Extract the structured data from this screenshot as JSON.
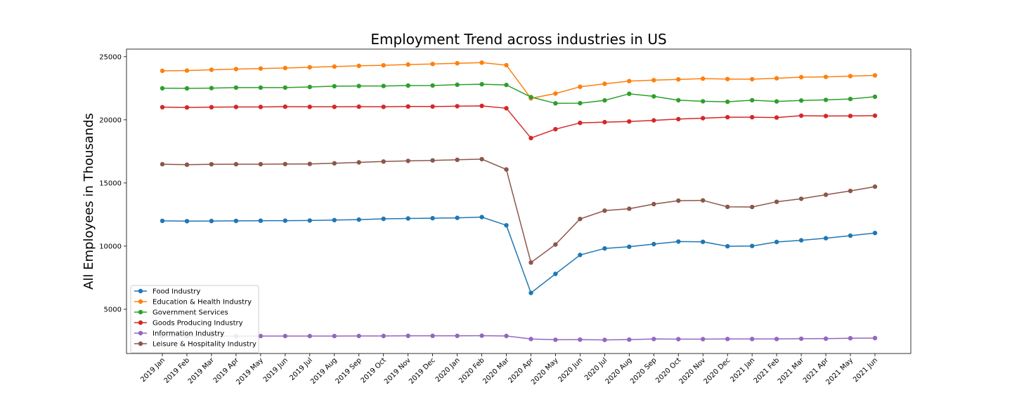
{
  "chart_data": {
    "type": "line",
    "title": "Employment Trend across industries in US",
    "xlabel": "",
    "ylabel": "All Employees in Thousands",
    "ylim": [
      1500,
      25600
    ],
    "yticks": [
      5000,
      10000,
      15000,
      20000,
      25000
    ],
    "grid": false,
    "legend_position": "lower-left",
    "categories": [
      "2019 Jan",
      "2019 Feb",
      "2019 Mar",
      "2019 Apr",
      "2019 May",
      "2019 Jun",
      "2019 Jul",
      "2019 Aug",
      "2019 Sep",
      "2019 Oct",
      "2019 Nov",
      "2019 Dec",
      "2020 Jan",
      "2020 Feb",
      "2020 Mar",
      "2020 Apr",
      "2020 May",
      "2020 Jun",
      "2020 Jul",
      "2020 Aug",
      "2020 Sep",
      "2020 Oct",
      "2020 Nov",
      "2020 Dec",
      "2021 Jan",
      "2021 Feb",
      "2021 Mar",
      "2021 Apr",
      "2021 May",
      "2021 Jun"
    ],
    "series": [
      {
        "name": "Food Industry",
        "color": "#1f77b4",
        "values": [
          12000,
          11980,
          11990,
          12000,
          12010,
          12020,
          12030,
          12060,
          12100,
          12160,
          12190,
          12210,
          12240,
          12300,
          11650,
          6300,
          7800,
          9300,
          9820,
          9950,
          10160,
          10360,
          10340,
          9990,
          10010,
          10330,
          10460,
          10630,
          10830,
          11040
        ]
      },
      {
        "name": "Education & Health Industry",
        "color": "#ff7f0e",
        "values": [
          23880,
          23900,
          23960,
          24020,
          24060,
          24100,
          24160,
          24220,
          24280,
          24320,
          24380,
          24420,
          24480,
          24530,
          24330,
          21700,
          22080,
          22620,
          22850,
          23070,
          23140,
          23200,
          23260,
          23230,
          23220,
          23290,
          23380,
          23400,
          23460,
          23520
        ]
      },
      {
        "name": "Government Services",
        "color": "#2ca02c",
        "values": [
          22500,
          22490,
          22510,
          22550,
          22550,
          22550,
          22600,
          22660,
          22680,
          22680,
          22710,
          22720,
          22780,
          22820,
          22760,
          21800,
          21310,
          21320,
          21540,
          22060,
          21860,
          21550,
          21470,
          21430,
          21550,
          21460,
          21530,
          21580,
          21650,
          21830
        ]
      },
      {
        "name": "Goods Producing Industry",
        "color": "#d62728",
        "values": [
          21000,
          20980,
          21000,
          21020,
          21020,
          21040,
          21030,
          21030,
          21040,
          21030,
          21060,
          21050,
          21080,
          21100,
          20920,
          18560,
          19260,
          19760,
          19820,
          19870,
          19960,
          20060,
          20130,
          20210,
          20210,
          20180,
          20330,
          20300,
          20310,
          20330
        ]
      },
      {
        "name": "Information Industry",
        "color": "#9467bd",
        "values": [
          2860,
          2870,
          2870,
          2870,
          2880,
          2880,
          2880,
          2880,
          2890,
          2890,
          2900,
          2900,
          2900,
          2910,
          2890,
          2650,
          2590,
          2600,
          2580,
          2600,
          2650,
          2640,
          2640,
          2650,
          2650,
          2650,
          2670,
          2680,
          2710,
          2720
        ]
      },
      {
        "name": "Leisure & Hospitality Industry",
        "color": "#8c564b",
        "values": [
          16490,
          16450,
          16480,
          16490,
          16490,
          16500,
          16510,
          16560,
          16630,
          16700,
          16750,
          16790,
          16840,
          16890,
          16070,
          8700,
          10130,
          12150,
          12810,
          12960,
          13330,
          13600,
          13620,
          13110,
          13100,
          13510,
          13750,
          14070,
          14370,
          14710
        ]
      }
    ]
  }
}
